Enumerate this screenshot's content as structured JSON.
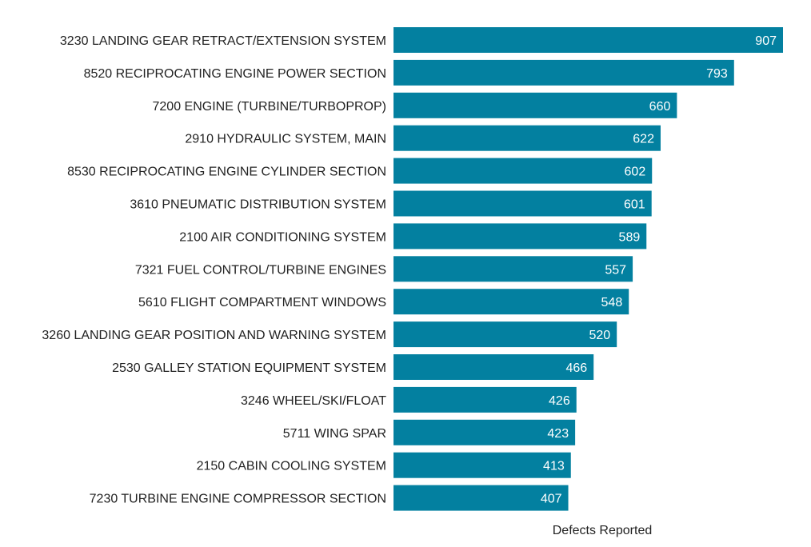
{
  "chart_data": {
    "type": "bar",
    "orientation": "horizontal",
    "title": "",
    "xlabel": "Defects Reported",
    "ylabel": "",
    "xlim": [
      0,
      907
    ],
    "grid": false,
    "bar_color": "#0380a0",
    "categories": [
      "3230 LANDING GEAR RETRACT/EXTENSION SYSTEM",
      "8520 RECIPROCATING ENGINE POWER SECTION",
      "7200 ENGINE (TURBINE/TURBOPROP)",
      "2910 HYDRAULIC SYSTEM, MAIN",
      "8530 RECIPROCATING ENGINE CYLINDER SECTION",
      "3610 PNEUMATIC DISTRIBUTION SYSTEM",
      "2100 AIR CONDITIONING SYSTEM",
      "7321 FUEL CONTROL/TURBINE ENGINES",
      "5610 FLIGHT COMPARTMENT WINDOWS",
      "3260 LANDING GEAR POSITION AND WARNING SYSTEM",
      "2530 GALLEY STATION EQUIPMENT SYSTEM",
      "3246 WHEEL/SKI/FLOAT",
      "5711 WING SPAR",
      "2150 CABIN COOLING SYSTEM",
      "7230 TURBINE ENGINE COMPRESSOR SECTION"
    ],
    "values": [
      907,
      793,
      660,
      622,
      602,
      601,
      589,
      557,
      548,
      520,
      466,
      426,
      423,
      413,
      407
    ]
  }
}
